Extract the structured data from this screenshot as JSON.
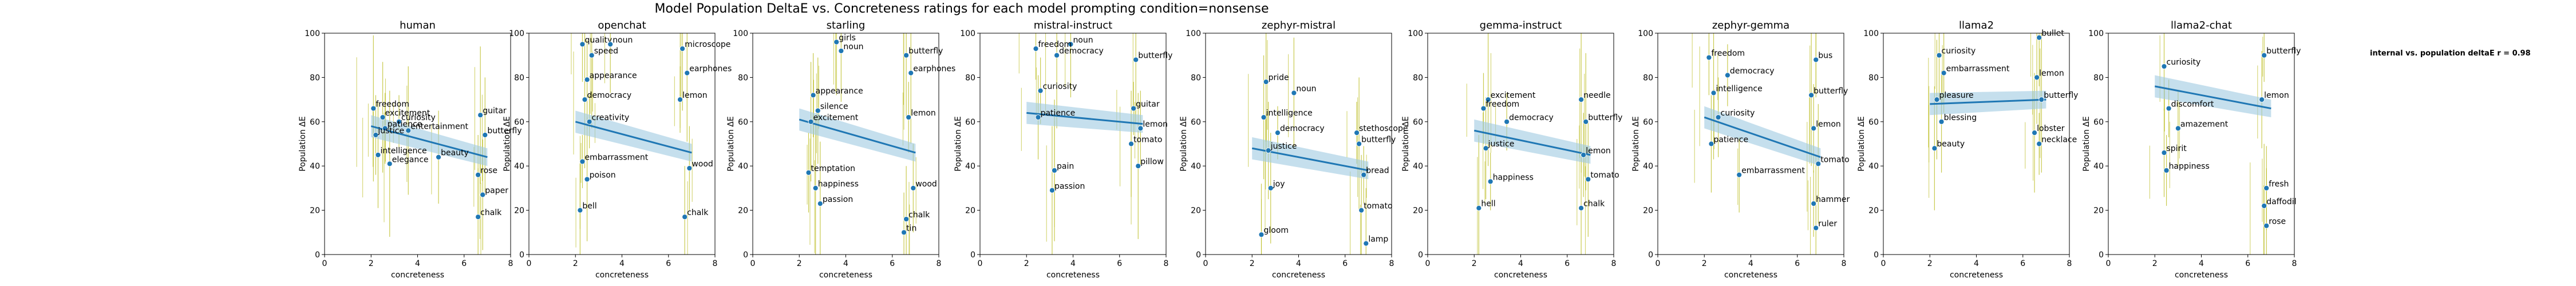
{
  "figure": {
    "suptitle": "Model Population DeltaE vs. Concreteness ratings for each model prompting condition=nonsense",
    "side_note": "internal vs. population deltaE r = 0.98",
    "colors": {
      "point": "#1f77b4",
      "fit_line": "#1f77b4",
      "fit_band": "#9ecae1",
      "error_bar": "#bcbd22",
      "axis": "#000000"
    }
  },
  "chart_data": [
    {
      "type": "scatter",
      "title": "human",
      "xlabel": "concreteness",
      "ylabel": "Population ΔE",
      "xlim": [
        0,
        8
      ],
      "ylim": [
        0,
        100
      ],
      "xticks": [
        0,
        2,
        4,
        6,
        8
      ],
      "yticks": [
        0,
        20,
        40,
        60,
        80,
        100
      ],
      "fit": {
        "x0": 2.0,
        "y0": 58,
        "x1": 7.0,
        "y1": 44
      },
      "points": [
        {
          "x": 2.1,
          "y": 66,
          "label": "freedom"
        },
        {
          "x": 2.5,
          "y": 62,
          "label": "excitement"
        },
        {
          "x": 3.2,
          "y": 60,
          "label": "curiosity"
        },
        {
          "x": 2.6,
          "y": 57,
          "label": "patience"
        },
        {
          "x": 3.6,
          "y": 56,
          "label": "entertainment"
        },
        {
          "x": 2.2,
          "y": 54,
          "label": "justice"
        },
        {
          "x": 2.3,
          "y": 45,
          "label": "intelligence"
        },
        {
          "x": 2.8,
          "y": 41,
          "label": "elegance"
        },
        {
          "x": 4.9,
          "y": 44,
          "label": "beauty"
        },
        {
          "x": 6.7,
          "y": 63,
          "label": "guitar"
        },
        {
          "x": 6.9,
          "y": 54,
          "label": "butterfly"
        },
        {
          "x": 6.6,
          "y": 36,
          "label": "rose"
        },
        {
          "x": 6.8,
          "y": 27,
          "label": "paper"
        },
        {
          "x": 6.6,
          "y": 17,
          "label": "chalk"
        }
      ]
    },
    {
      "type": "scatter",
      "title": "openchat",
      "xlabel": "concreteness",
      "ylabel": "Population ΔE",
      "xlim": [
        0,
        8
      ],
      "ylim": [
        0,
        100
      ],
      "xticks": [
        0,
        2,
        4,
        6,
        8
      ],
      "yticks": [
        0,
        20,
        40,
        60,
        80,
        100
      ],
      "fit": {
        "x0": 2.0,
        "y0": 60,
        "x1": 7.0,
        "y1": 46
      },
      "points": [
        {
          "x": 2.3,
          "y": 95,
          "label": "quality"
        },
        {
          "x": 2.7,
          "y": 90,
          "label": "speed"
        },
        {
          "x": 3.5,
          "y": 95,
          "label": "noun"
        },
        {
          "x": 2.5,
          "y": 79,
          "label": "appearance"
        },
        {
          "x": 2.4,
          "y": 70,
          "label": "democracy"
        },
        {
          "x": 2.6,
          "y": 60,
          "label": "creativity"
        },
        {
          "x": 2.3,
          "y": 42,
          "label": "embarrassment"
        },
        {
          "x": 2.5,
          "y": 34,
          "label": "poison"
        },
        {
          "x": 2.2,
          "y": 20,
          "label": "bell"
        },
        {
          "x": 6.6,
          "y": 93,
          "label": "microscope"
        },
        {
          "x": 6.8,
          "y": 82,
          "label": "earphones"
        },
        {
          "x": 6.5,
          "y": 70,
          "label": "lemon"
        },
        {
          "x": 6.9,
          "y": 39,
          "label": "wood"
        },
        {
          "x": 6.7,
          "y": 17,
          "label": "chalk"
        }
      ]
    },
    {
      "type": "scatter",
      "title": "starling",
      "xlabel": "concreteness",
      "ylabel": "Population ΔE",
      "xlim": [
        0,
        8
      ],
      "ylim": [
        0,
        100
      ],
      "xticks": [
        0,
        2,
        4,
        6,
        8
      ],
      "yticks": [
        0,
        20,
        40,
        60,
        80,
        100
      ],
      "fit": {
        "x0": 2.0,
        "y0": 61,
        "x1": 7.0,
        "y1": 46
      },
      "points": [
        {
          "x": 3.6,
          "y": 96,
          "label": "girls"
        },
        {
          "x": 3.8,
          "y": 92,
          "label": "noun"
        },
        {
          "x": 2.6,
          "y": 72,
          "label": "appearance"
        },
        {
          "x": 2.8,
          "y": 65,
          "label": "silence"
        },
        {
          "x": 2.5,
          "y": 60,
          "label": "excitement"
        },
        {
          "x": 2.4,
          "y": 37,
          "label": "temptation"
        },
        {
          "x": 2.7,
          "y": 30,
          "label": "happiness"
        },
        {
          "x": 2.9,
          "y": 23,
          "label": "passion"
        },
        {
          "x": 6.6,
          "y": 90,
          "label": "butterfly"
        },
        {
          "x": 6.8,
          "y": 82,
          "label": "earphones"
        },
        {
          "x": 6.7,
          "y": 62,
          "label": "lemon"
        },
        {
          "x": 6.9,
          "y": 30,
          "label": "wood"
        },
        {
          "x": 6.6,
          "y": 16,
          "label": "chalk"
        },
        {
          "x": 6.5,
          "y": 10,
          "label": "tin"
        }
      ]
    },
    {
      "type": "scatter",
      "title": "mistral-instruct",
      "xlabel": "concreteness",
      "ylabel": "Population ΔE",
      "xlim": [
        0,
        8
      ],
      "ylim": [
        0,
        100
      ],
      "xticks": [
        0,
        2,
        4,
        6,
        8
      ],
      "yticks": [
        0,
        20,
        40,
        60,
        80,
        100
      ],
      "fit": {
        "x0": 2.0,
        "y0": 64,
        "x1": 7.0,
        "y1": 59
      },
      "points": [
        {
          "x": 3.9,
          "y": 95,
          "label": "noun"
        },
        {
          "x": 2.4,
          "y": 93,
          "label": "freedom"
        },
        {
          "x": 3.3,
          "y": 90,
          "label": "democracy"
        },
        {
          "x": 2.6,
          "y": 74,
          "label": "curiosity"
        },
        {
          "x": 2.5,
          "y": 62,
          "label": "patience"
        },
        {
          "x": 3.2,
          "y": 38,
          "label": "pain"
        },
        {
          "x": 3.1,
          "y": 29,
          "label": "passion"
        },
        {
          "x": 6.7,
          "y": 88,
          "label": "butterfly"
        },
        {
          "x": 6.6,
          "y": 66,
          "label": "guitar"
        },
        {
          "x": 6.9,
          "y": 57,
          "label": "lemon"
        },
        {
          "x": 6.5,
          "y": 50,
          "label": "tomato"
        },
        {
          "x": 6.8,
          "y": 40,
          "label": "pillow"
        }
      ]
    },
    {
      "type": "scatter",
      "title": "zephyr-mistral",
      "xlabel": "concreteness",
      "ylabel": "Population ΔE",
      "xlim": [
        0,
        8
      ],
      "ylim": [
        0,
        100
      ],
      "xticks": [
        0,
        2,
        4,
        6,
        8
      ],
      "yticks": [
        0,
        20,
        40,
        60,
        80,
        100
      ],
      "fit": {
        "x0": 2.0,
        "y0": 48,
        "x1": 7.0,
        "y1": 38
      },
      "points": [
        {
          "x": 2.6,
          "y": 78,
          "label": "pride"
        },
        {
          "x": 3.8,
          "y": 73,
          "label": "noun"
        },
        {
          "x": 2.5,
          "y": 62,
          "label": "intelligence"
        },
        {
          "x": 3.1,
          "y": 55,
          "label": "democracy"
        },
        {
          "x": 2.7,
          "y": 47,
          "label": "justice"
        },
        {
          "x": 2.8,
          "y": 30,
          "label": "joy"
        },
        {
          "x": 2.4,
          "y": 9,
          "label": "gloom"
        },
        {
          "x": 6.5,
          "y": 55,
          "label": "stethoscope"
        },
        {
          "x": 6.6,
          "y": 50,
          "label": "butterfly"
        },
        {
          "x": 6.8,
          "y": 36,
          "label": "bread"
        },
        {
          "x": 6.7,
          "y": 20,
          "label": "tomato"
        },
        {
          "x": 6.9,
          "y": 5,
          "label": "lamp"
        }
      ]
    },
    {
      "type": "scatter",
      "title": "gemma-instruct",
      "xlabel": "concreteness",
      "ylabel": "Population ΔE",
      "xlim": [
        0,
        8
      ],
      "ylim": [
        0,
        100
      ],
      "xticks": [
        0,
        2,
        4,
        6,
        8
      ],
      "yticks": [
        0,
        20,
        40,
        60,
        80,
        100
      ],
      "fit": {
        "x0": 2.0,
        "y0": 56,
        "x1": 7.0,
        "y1": 45
      },
      "points": [
        {
          "x": 2.6,
          "y": 70,
          "label": "excitement"
        },
        {
          "x": 2.4,
          "y": 66,
          "label": "freedom"
        },
        {
          "x": 3.4,
          "y": 60,
          "label": "democracy"
        },
        {
          "x": 2.5,
          "y": 48,
          "label": "justice"
        },
        {
          "x": 2.7,
          "y": 33,
          "label": "happiness"
        },
        {
          "x": 2.2,
          "y": 21,
          "label": "hell"
        },
        {
          "x": 6.6,
          "y": 70,
          "label": "needle"
        },
        {
          "x": 6.8,
          "y": 60,
          "label": "butterfly"
        },
        {
          "x": 6.7,
          "y": 45,
          "label": "lemon"
        },
        {
          "x": 6.9,
          "y": 34,
          "label": "tomato"
        },
        {
          "x": 6.6,
          "y": 21,
          "label": "chalk"
        }
      ]
    },
    {
      "type": "scatter",
      "title": "zephyr-gemma",
      "xlabel": "concreteness",
      "ylabel": "Population ΔE",
      "xlim": [
        0,
        8
      ],
      "ylim": [
        0,
        100
      ],
      "xticks": [
        0,
        2,
        4,
        6,
        8
      ],
      "yticks": [
        0,
        20,
        40,
        60,
        80,
        100
      ],
      "fit": {
        "x0": 2.0,
        "y0": 62,
        "x1": 7.0,
        "y1": 44
      },
      "points": [
        {
          "x": 2.2,
          "y": 89,
          "label": "freedom"
        },
        {
          "x": 3.0,
          "y": 81,
          "label": "democracy"
        },
        {
          "x": 2.4,
          "y": 73,
          "label": "intelligence"
        },
        {
          "x": 2.6,
          "y": 62,
          "label": "curiosity"
        },
        {
          "x": 2.3,
          "y": 50,
          "label": "patience"
        },
        {
          "x": 3.5,
          "y": 36,
          "label": "embarrassment"
        },
        {
          "x": 6.8,
          "y": 88,
          "label": "bus"
        },
        {
          "x": 6.6,
          "y": 72,
          "label": "butterfly"
        },
        {
          "x": 6.7,
          "y": 57,
          "label": "lemon"
        },
        {
          "x": 6.9,
          "y": 41,
          "label": "tomato"
        },
        {
          "x": 6.7,
          "y": 23,
          "label": "hammer"
        },
        {
          "x": 6.8,
          "y": 12,
          "label": "ruler"
        }
      ]
    },
    {
      "type": "scatter",
      "title": "llama2",
      "xlabel": "concreteness",
      "ylabel": "Population ΔE",
      "xlim": [
        0,
        8
      ],
      "ylim": [
        0,
        100
      ],
      "xticks": [
        0,
        2,
        4,
        6,
        8
      ],
      "yticks": [
        0,
        20,
        40,
        60,
        80,
        100
      ],
      "fit": {
        "x0": 2.0,
        "y0": 68,
        "x1": 7.0,
        "y1": 70
      },
      "points": [
        {
          "x": 2.4,
          "y": 90,
          "label": "curiosity"
        },
        {
          "x": 2.6,
          "y": 82,
          "label": "embarrassment"
        },
        {
          "x": 2.3,
          "y": 70,
          "label": "pleasure"
        },
        {
          "x": 2.5,
          "y": 60,
          "label": "blessing"
        },
        {
          "x": 2.2,
          "y": 48,
          "label": "beauty"
        },
        {
          "x": 6.7,
          "y": 98,
          "label": "bullet"
        },
        {
          "x": 6.6,
          "y": 80,
          "label": "lemon"
        },
        {
          "x": 6.8,
          "y": 70,
          "label": "butterfly"
        },
        {
          "x": 6.5,
          "y": 55,
          "label": "lobster"
        },
        {
          "x": 6.7,
          "y": 50,
          "label": "necklace"
        }
      ]
    },
    {
      "type": "scatter",
      "title": "llama2-chat",
      "xlabel": "concreteness",
      "ylabel": "Population ΔE",
      "xlim": [
        0,
        8
      ],
      "ylim": [
        0,
        100
      ],
      "xticks": [
        0,
        2,
        4,
        6,
        8
      ],
      "yticks": [
        0,
        20,
        40,
        60,
        80,
        100
      ],
      "fit": {
        "x0": 2.0,
        "y0": 76,
        "x1": 7.0,
        "y1": 66
      },
      "points": [
        {
          "x": 2.4,
          "y": 85,
          "label": "curiosity"
        },
        {
          "x": 2.6,
          "y": 66,
          "label": "discomfort"
        },
        {
          "x": 3.0,
          "y": 57,
          "label": "amazement"
        },
        {
          "x": 2.4,
          "y": 46,
          "label": "spirit"
        },
        {
          "x": 2.5,
          "y": 38,
          "label": "happiness"
        },
        {
          "x": 6.7,
          "y": 90,
          "label": "butterfly"
        },
        {
          "x": 6.6,
          "y": 70,
          "label": "lemon"
        },
        {
          "x": 6.8,
          "y": 30,
          "label": "fresh"
        },
        {
          "x": 6.7,
          "y": 22,
          "label": "daffodil"
        },
        {
          "x": 6.8,
          "y": 13,
          "label": "rose"
        }
      ]
    }
  ]
}
